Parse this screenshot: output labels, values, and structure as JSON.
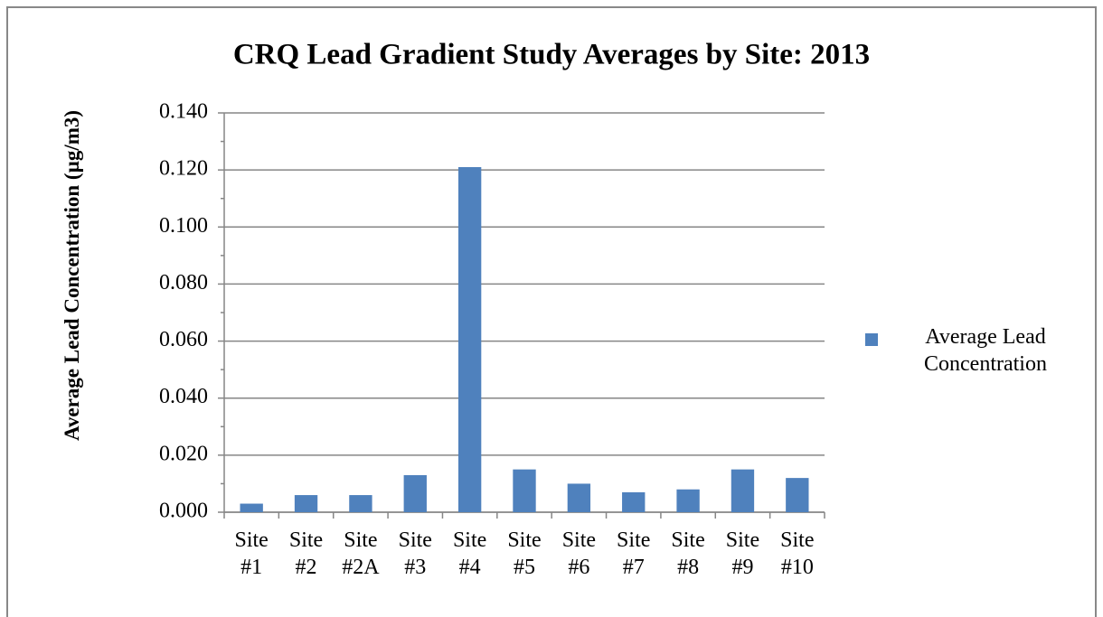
{
  "chart_data": {
    "type": "bar",
    "title": "CRQ Lead Gradient  Study  Averages by Site: 2013",
    "y_label": "Average  Lead  Concentration (µg/m3)",
    "categories": [
      "Site #1",
      "Site #2",
      "Site #2A",
      "Site #3",
      "Site #4",
      "Site #5",
      "Site #6",
      "Site #7",
      "Site #8",
      "Site #9",
      "Site #10"
    ],
    "series": [
      {
        "name": "Average Lead Concentration",
        "color": "#4f81bd",
        "values": [
          0.003,
          0.006,
          0.006,
          0.013,
          0.121,
          0.015,
          0.01,
          0.007,
          0.008,
          0.015,
          0.012
        ]
      }
    ],
    "ylim": [
      0,
      0.14
    ],
    "yticks": [
      {
        "value": 0,
        "label": "0.000"
      },
      {
        "value": 0.02,
        "label": "0.020"
      },
      {
        "value": 0.04,
        "label": "0.040"
      },
      {
        "value": 0.06,
        "label": "0.060"
      },
      {
        "value": 0.08,
        "label": "0.080"
      },
      {
        "value": 0.1,
        "label": "0.100"
      },
      {
        "value": 0.12,
        "label": "0.120"
      },
      {
        "value": 0.14,
        "label": "0.140"
      }
    ],
    "grid": true,
    "legend": "right"
  }
}
